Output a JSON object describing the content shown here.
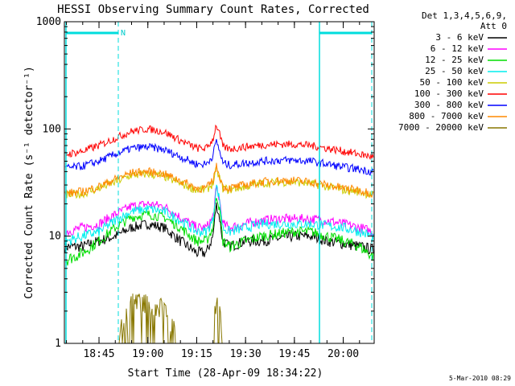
{
  "chart_data": {
    "type": "line",
    "title": "HESSI Observing Summary Count Rates, Corrected",
    "xlabel": "Start Time (28-Apr-09 18:34:22)",
    "ylabel": "Corrected Count Rate (s⁻¹ detector⁻¹)",
    "yscale": "log",
    "ylim": [
      1,
      1000
    ],
    "xlim": [
      "18:34:22",
      "20:09:30"
    ],
    "x_ticks": [
      "18:45",
      "19:00",
      "19:15",
      "19:30",
      "19:45",
      "20:00"
    ],
    "y_ticks": [
      "1",
      "10",
      "100",
      "1000"
    ],
    "grid": false,
    "legend_position": "right",
    "legend_header": [
      "Det 1,3,4,5,6,9,",
      "Att 0"
    ],
    "flag_label": "N",
    "footer_date": "5-Mar-2010 08:29",
    "sample_times": [
      "18:35",
      "18:40",
      "18:45",
      "18:50",
      "18:55",
      "19:00",
      "19:05",
      "19:10",
      "19:15",
      "19:18",
      "19:20",
      "19:21",
      "19:22",
      "19:23",
      "19:25",
      "19:30",
      "19:35",
      "19:40",
      "19:45",
      "19:50",
      "19:55",
      "20:00",
      "20:05",
      "20:09"
    ],
    "series": [
      {
        "name": "3 - 6 keV",
        "color": "#000000",
        "values": [
          8,
          8,
          9,
          10,
          12,
          13,
          12,
          9,
          7,
          7,
          10,
          20,
          15,
          9,
          8,
          9,
          9,
          9.5,
          10,
          10,
          9,
          8.5,
          8,
          7.5
        ]
      },
      {
        "name": "6 - 12 keV",
        "color": "#ff00ff",
        "values": [
          11,
          12,
          13,
          16,
          19,
          20,
          19,
          15,
          12,
          12,
          15,
          28,
          22,
          13,
          12,
          13,
          14,
          14.5,
          14.5,
          14.5,
          14,
          13,
          12,
          11
        ]
      },
      {
        "name": "12 - 25 keV",
        "color": "#00dd00",
        "values": [
          6,
          7,
          9,
          12,
          15,
          16,
          15,
          12,
          9,
          9,
          12,
          25,
          18,
          9,
          8,
          9,
          10,
          10.5,
          11,
          11,
          10,
          9,
          8,
          6.5
        ]
      },
      {
        "name": "25 - 50 keV",
        "color": "#00eeee",
        "values": [
          9,
          10,
          11,
          14,
          17,
          18,
          17,
          14,
          11,
          11,
          14,
          30,
          22,
          12,
          11,
          12,
          13,
          13,
          13,
          13,
          12.5,
          12,
          11,
          10
        ]
      },
      {
        "name": "50 - 100 keV",
        "color": "#cccc00",
        "values": [
          24,
          25,
          28,
          32,
          37,
          38,
          36,
          31,
          27,
          27,
          31,
          42,
          35,
          28,
          27,
          29,
          31,
          32,
          32,
          31,
          29,
          27,
          26,
          24
        ]
      },
      {
        "name": "100 - 300 keV",
        "color": "#ff0000",
        "values": [
          58,
          62,
          70,
          82,
          95,
          100,
          94,
          78,
          66,
          66,
          80,
          110,
          90,
          68,
          65,
          68,
          71,
          72,
          72,
          70,
          66,
          62,
          58,
          55
        ]
      },
      {
        "name": "300 - 800 keV",
        "color": "#0000ff",
        "values": [
          43,
          45,
          50,
          58,
          66,
          68,
          64,
          55,
          47,
          47,
          57,
          78,
          63,
          48,
          46,
          48,
          50,
          51,
          51,
          50,
          47,
          44,
          42,
          40
        ]
      },
      {
        "name": "800 - 7000 keV",
        "color": "#ff8800",
        "values": [
          25,
          26,
          29,
          34,
          39,
          40,
          38,
          33,
          28,
          28,
          33,
          45,
          37,
          29,
          28,
          30,
          32,
          33,
          33,
          32,
          30,
          28,
          27,
          25
        ]
      },
      {
        "name": "7000 - 20000 keV",
        "color": "#887700",
        "values": [
          1,
          1,
          1,
          1,
          2.2,
          2.2,
          2,
          1,
          1,
          1,
          1,
          2.5,
          2,
          1,
          1,
          1,
          1,
          1,
          1,
          1,
          1,
          1,
          1,
          1
        ]
      }
    ]
  }
}
